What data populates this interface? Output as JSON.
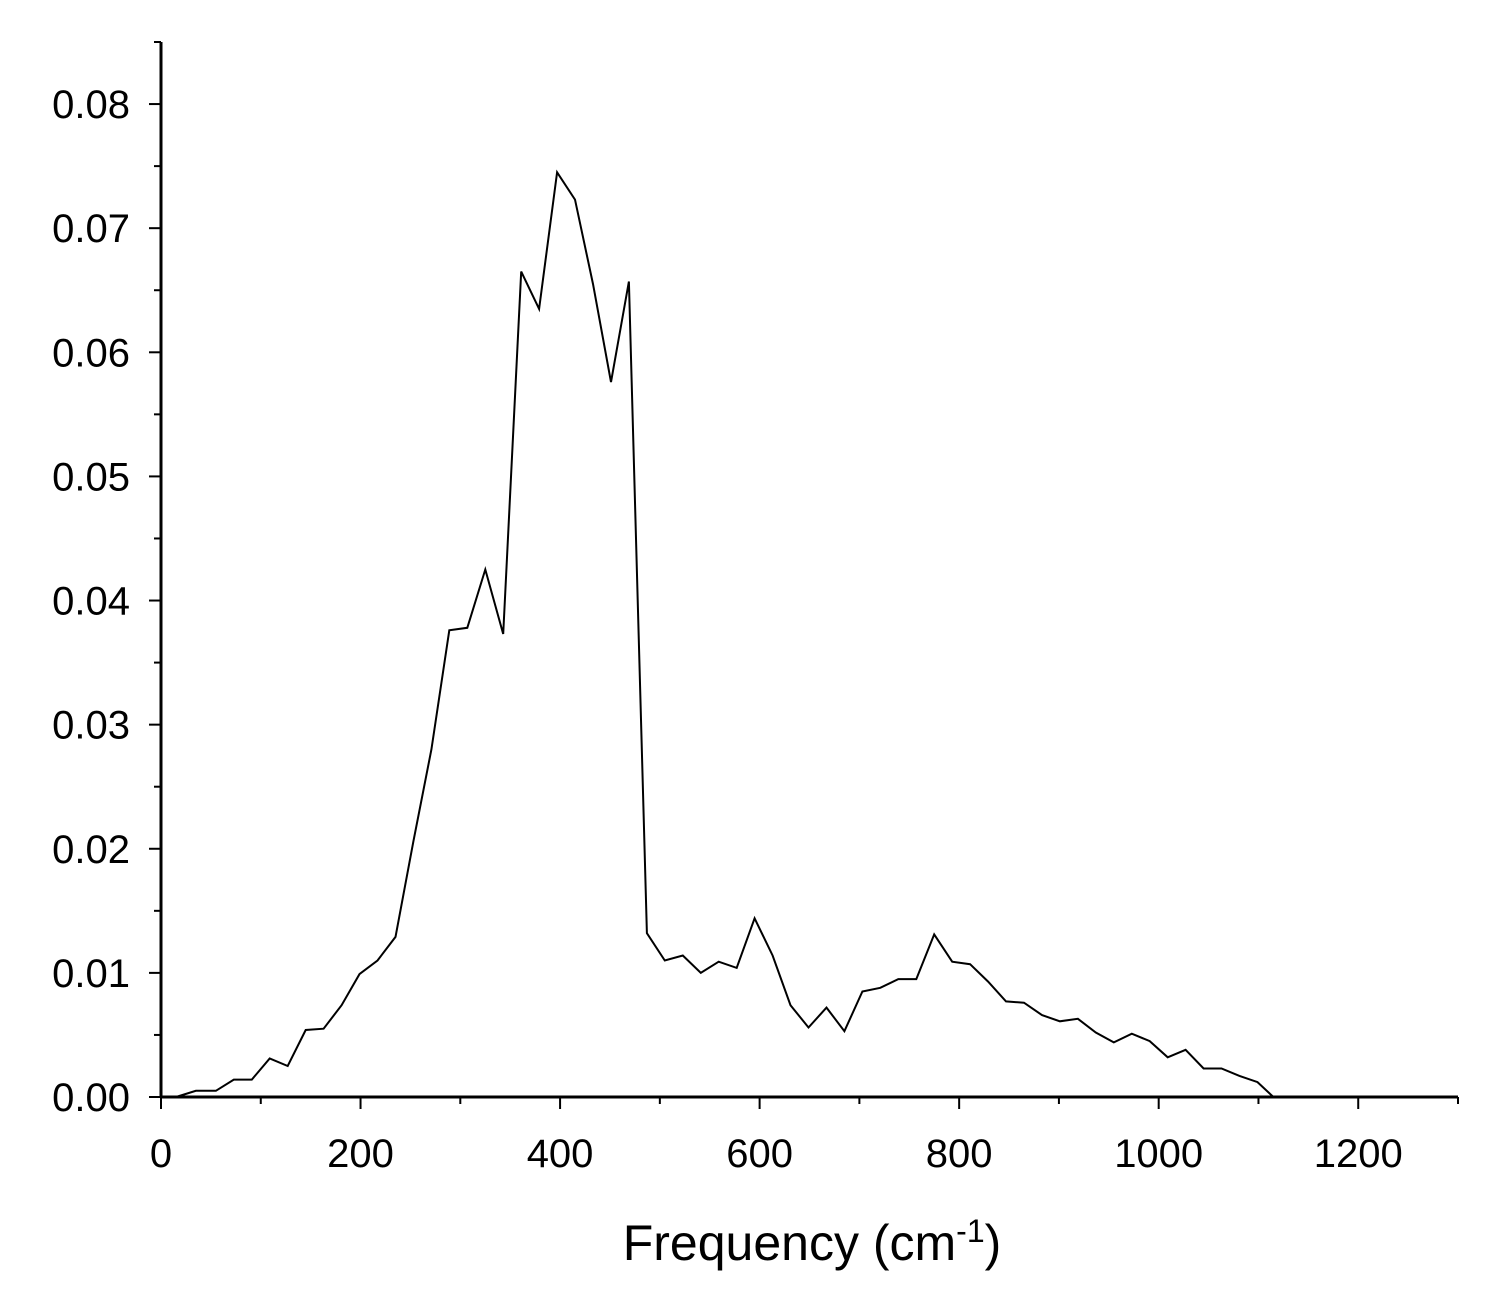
{
  "chart_data": {
    "type": "line",
    "title": "",
    "xlabel": {
      "prefix": "Frequency (cm",
      "superscript": "-1",
      "suffix": ")"
    },
    "ylabel": "",
    "xlim": [
      0,
      1300
    ],
    "ylim": [
      0,
      0.085
    ],
    "x_ticks": [
      0,
      200,
      400,
      600,
      800,
      1000,
      1200
    ],
    "x_tick_labels": [
      "0",
      "200",
      "400",
      "600",
      "800",
      "1000",
      "1200"
    ],
    "y_ticks": [
      0,
      0.01,
      0.02,
      0.03,
      0.04,
      0.05,
      0.06,
      0.07,
      0.08
    ],
    "y_tick_labels": [
      "0.00",
      "0.01",
      "0.02",
      "0.03",
      "0.04",
      "0.05",
      "0.06",
      "0.07",
      "0.08"
    ],
    "grid": false,
    "legend": "none",
    "line_color": "#000000",
    "series": [
      {
        "x": [
          15,
          35,
          55,
          73,
          91,
          109,
          127,
          145,
          163,
          181,
          199,
          217,
          235,
          253,
          271,
          289,
          307,
          325,
          343,
          361,
          379,
          397,
          415,
          433,
          451,
          469,
          487,
          505,
          523,
          541,
          559,
          577,
          595,
          613,
          631,
          649,
          667,
          685,
          703,
          721,
          739,
          757,
          775,
          793,
          811,
          829,
          847,
          865,
          883,
          901,
          919,
          937,
          955,
          973,
          991,
          1009,
          1027,
          1045,
          1063,
          1081,
          1099,
          1115
        ],
        "y": [
          0.0,
          0.0005,
          0.0005,
          0.0014,
          0.0014,
          0.0031,
          0.0025,
          0.0054,
          0.0055,
          0.0074,
          0.0099,
          0.011,
          0.0129,
          0.0206,
          0.028,
          0.0376,
          0.0378,
          0.0425,
          0.0373,
          0.0665,
          0.0635,
          0.0745,
          0.0723,
          0.0655,
          0.0576,
          0.0657,
          0.0132,
          0.011,
          0.0114,
          0.01,
          0.0109,
          0.0104,
          0.0144,
          0.0114,
          0.0074,
          0.0056,
          0.0072,
          0.0053,
          0.0085,
          0.0088,
          0.0095,
          0.0095,
          0.0131,
          0.0109,
          0.0107,
          0.0093,
          0.0077,
          0.0076,
          0.0066,
          0.0061,
          0.0063,
          0.0052,
          0.0044,
          0.0051,
          0.0045,
          0.0032,
          0.0038,
          0.0023,
          0.0023,
          0.0017,
          0.0012,
          0.0
        ]
      }
    ]
  }
}
